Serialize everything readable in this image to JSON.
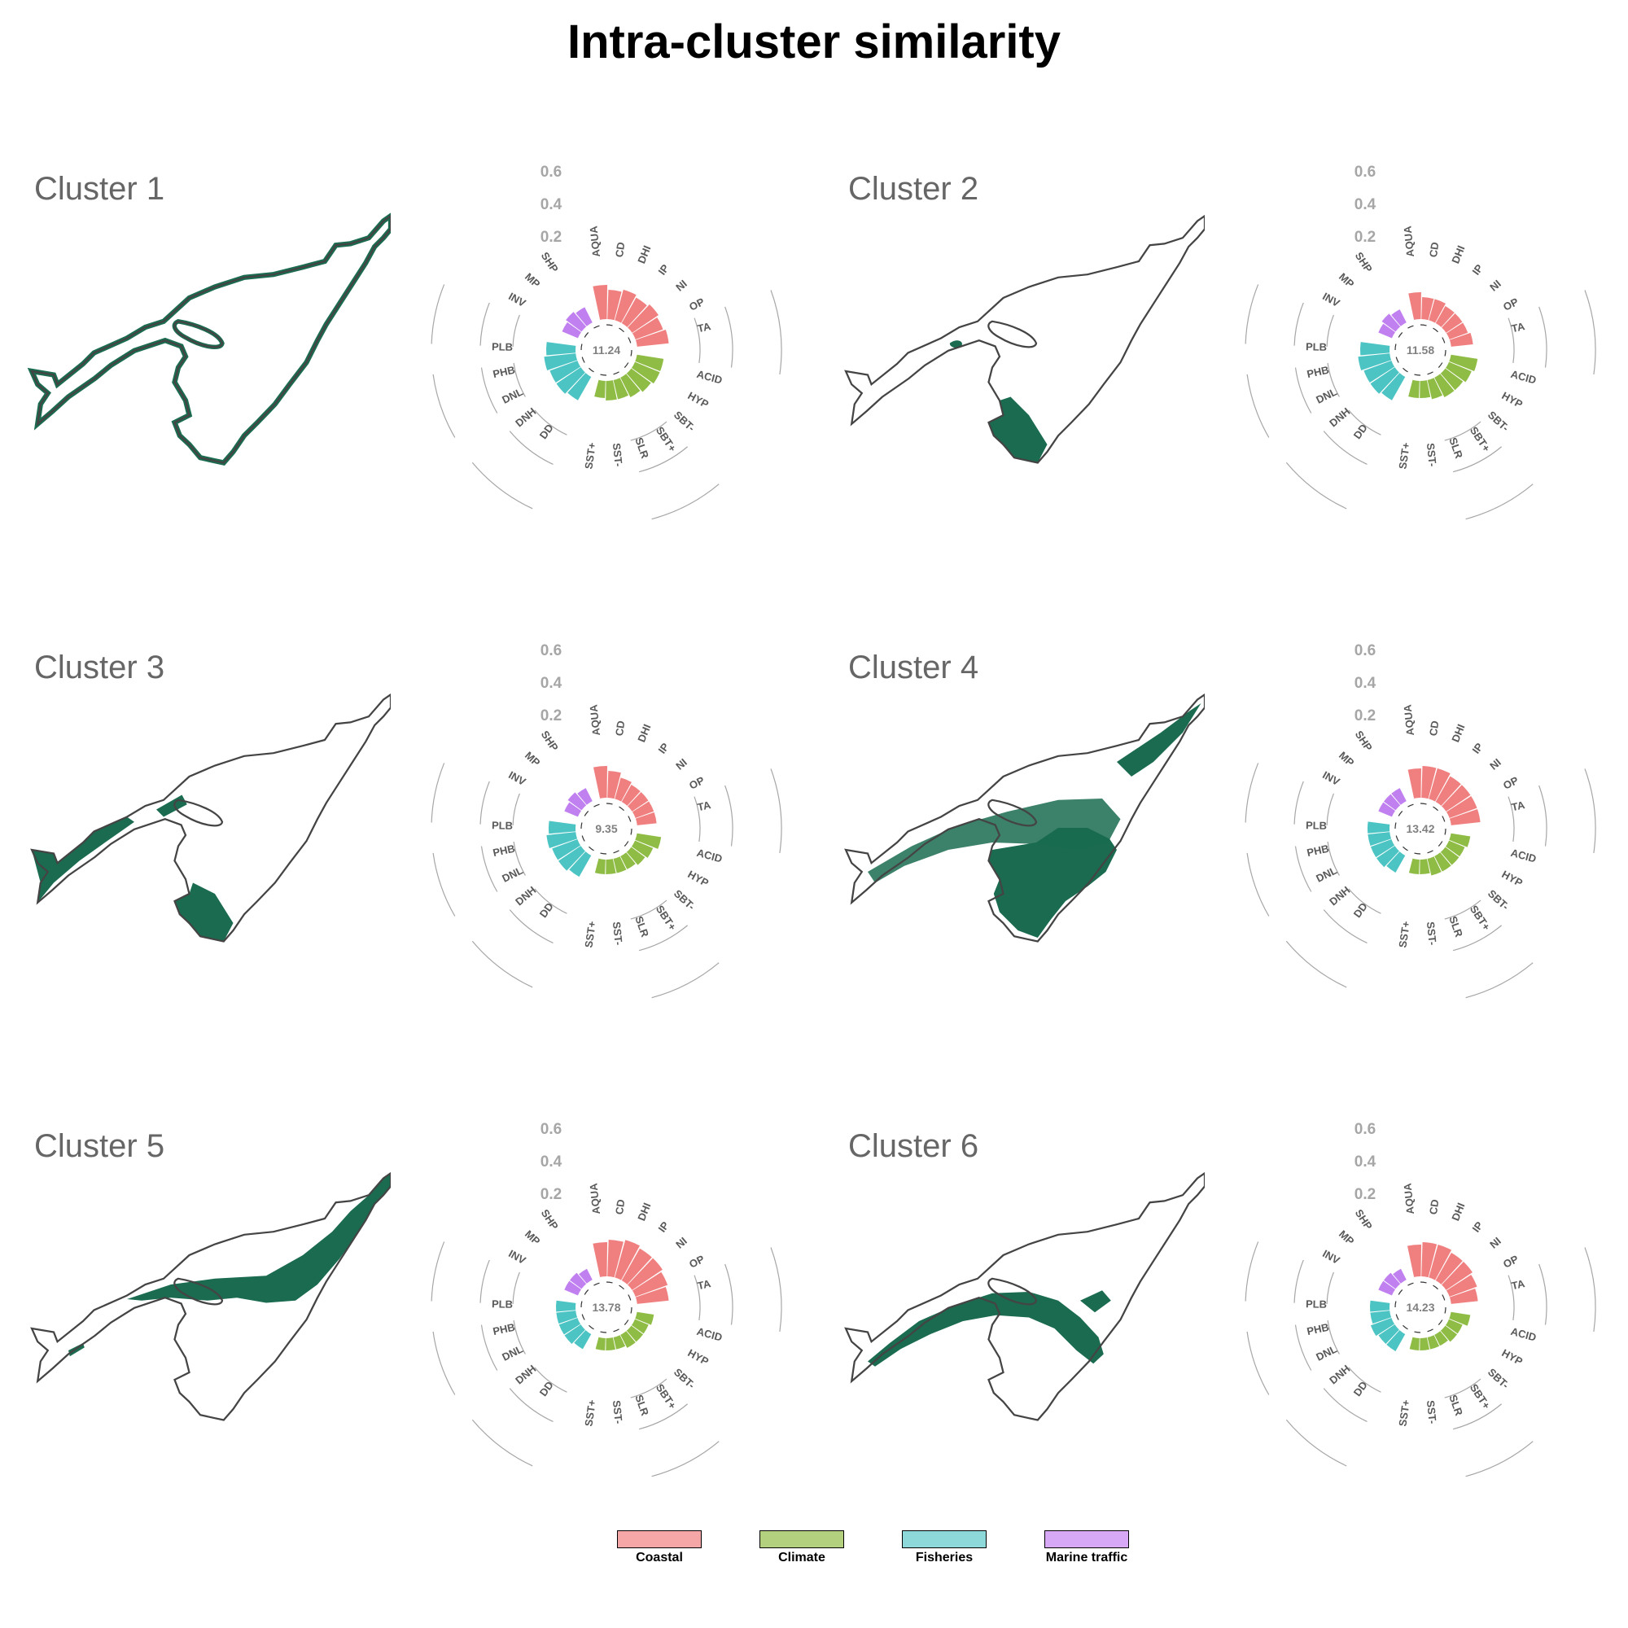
{
  "title": "Intra-cluster similarity",
  "colors": {
    "map_fill": "#1a6b50",
    "map_outline": "#444444",
    "Coastal": "#f08080",
    "Climate": "#8fbc45",
    "Fisheries": "#4dc4c4",
    "Marine traffic": "#c080f0",
    "grid": "#a6a6a6"
  },
  "legend": {
    "items": [
      {
        "label": "Coastal",
        "color": "#f5a7a7"
      },
      {
        "label": "Climate",
        "color": "#b3d07e"
      },
      {
        "label": "Fisheries",
        "color": "#8dd9d9"
      },
      {
        "label": "Marine traffic",
        "color": "#d6a8f5"
      }
    ]
  },
  "panels": [
    {
      "label": "Cluster 1",
      "center_value": "11.24",
      "map_coverage": "coast"
    },
    {
      "label": "Cluster 2",
      "center_value": "11.58",
      "map_coverage": "south-coast"
    },
    {
      "label": "Cluster 3",
      "center_value": "9.35",
      "map_coverage": "coastal-patches"
    },
    {
      "label": "Cluster 4",
      "center_value": "13.42",
      "map_coverage": "southern-gulf"
    },
    {
      "label": "Cluster 5",
      "center_value": "13.78",
      "map_coverage": "northeast-gulf"
    },
    {
      "label": "Cluster 6",
      "center_value": "14.23",
      "map_coverage": "laurentian-channel"
    }
  ],
  "chart_data": {
    "type": "bar",
    "polar": true,
    "radial_ticks": [
      "0.2",
      "0.4",
      "0.6"
    ],
    "ylim": [
      0,
      0.6
    ],
    "categories": [
      "AQUA",
      "CD",
      "DHI",
      "IP",
      "NI",
      "OP",
      "TA",
      "ACID",
      "HYP",
      "SBT-",
      "SBT+",
      "SLR",
      "SST-",
      "SST+",
      "DD",
      "DNH",
      "DNL",
      "PHB",
      "PLB",
      "INV",
      "MP",
      "SHP"
    ],
    "groups": {
      "Coastal": [
        "AQUA",
        "CD",
        "DHI",
        "IP",
        "NI",
        "OP",
        "TA"
      ],
      "Climate": [
        "ACID",
        "HYP",
        "SBT-",
        "SBT+",
        "SLR",
        "SST-",
        "SST+"
      ],
      "Fisheries": [
        "DD",
        "DNH",
        "DNL",
        "PHB",
        "PLB"
      ],
      "Marine traffic": [
        "INV",
        "MP",
        "SHP"
      ]
    },
    "series": [
      {
        "name": "Cluster 1",
        "center": "11.24",
        "values": [
          0.15,
          0.13,
          0.14,
          0.13,
          0.14,
          0.13,
          0.14,
          0.12,
          0.12,
          0.11,
          0.1,
          0.09,
          0.09,
          0.08,
          0.12,
          0.13,
          0.13,
          0.14,
          0.13,
          0.08,
          0.09,
          0.08
        ]
      },
      {
        "name": "Cluster 2",
        "center": "11.58",
        "values": [
          0.12,
          0.1,
          0.1,
          0.09,
          0.09,
          0.09,
          0.1,
          0.12,
          0.11,
          0.1,
          0.1,
          0.09,
          0.08,
          0.08,
          0.12,
          0.13,
          0.13,
          0.14,
          0.13,
          0.07,
          0.08,
          0.07
        ]
      },
      {
        "name": "Cluster 3",
        "center": "9.35",
        "values": [
          0.14,
          0.12,
          0.1,
          0.09,
          0.09,
          0.09,
          0.09,
          0.11,
          0.09,
          0.08,
          0.07,
          0.07,
          0.07,
          0.07,
          0.11,
          0.12,
          0.12,
          0.13,
          0.12,
          0.07,
          0.08,
          0.07
        ]
      },
      {
        "name": "Cluster 4",
        "center": "13.42",
        "values": [
          0.13,
          0.14,
          0.14,
          0.13,
          0.13,
          0.13,
          0.13,
          0.09,
          0.08,
          0.08,
          0.08,
          0.08,
          0.07,
          0.07,
          0.09,
          0.1,
          0.1,
          0.1,
          0.1,
          0.07,
          0.07,
          0.07
        ]
      },
      {
        "name": "Cluster 5",
        "center": "13.78",
        "values": [
          0.15,
          0.16,
          0.17,
          0.16,
          0.16,
          0.15,
          0.14,
          0.08,
          0.07,
          0.07,
          0.07,
          0.06,
          0.06,
          0.06,
          0.08,
          0.09,
          0.09,
          0.09,
          0.09,
          0.07,
          0.07,
          0.06
        ]
      },
      {
        "name": "Cluster 6",
        "center": "14.23",
        "values": [
          0.14,
          0.15,
          0.15,
          0.14,
          0.14,
          0.13,
          0.12,
          0.09,
          0.07,
          0.07,
          0.06,
          0.06,
          0.06,
          0.06,
          0.09,
          0.09,
          0.1,
          0.09,
          0.09,
          0.07,
          0.07,
          0.06
        ]
      }
    ]
  }
}
